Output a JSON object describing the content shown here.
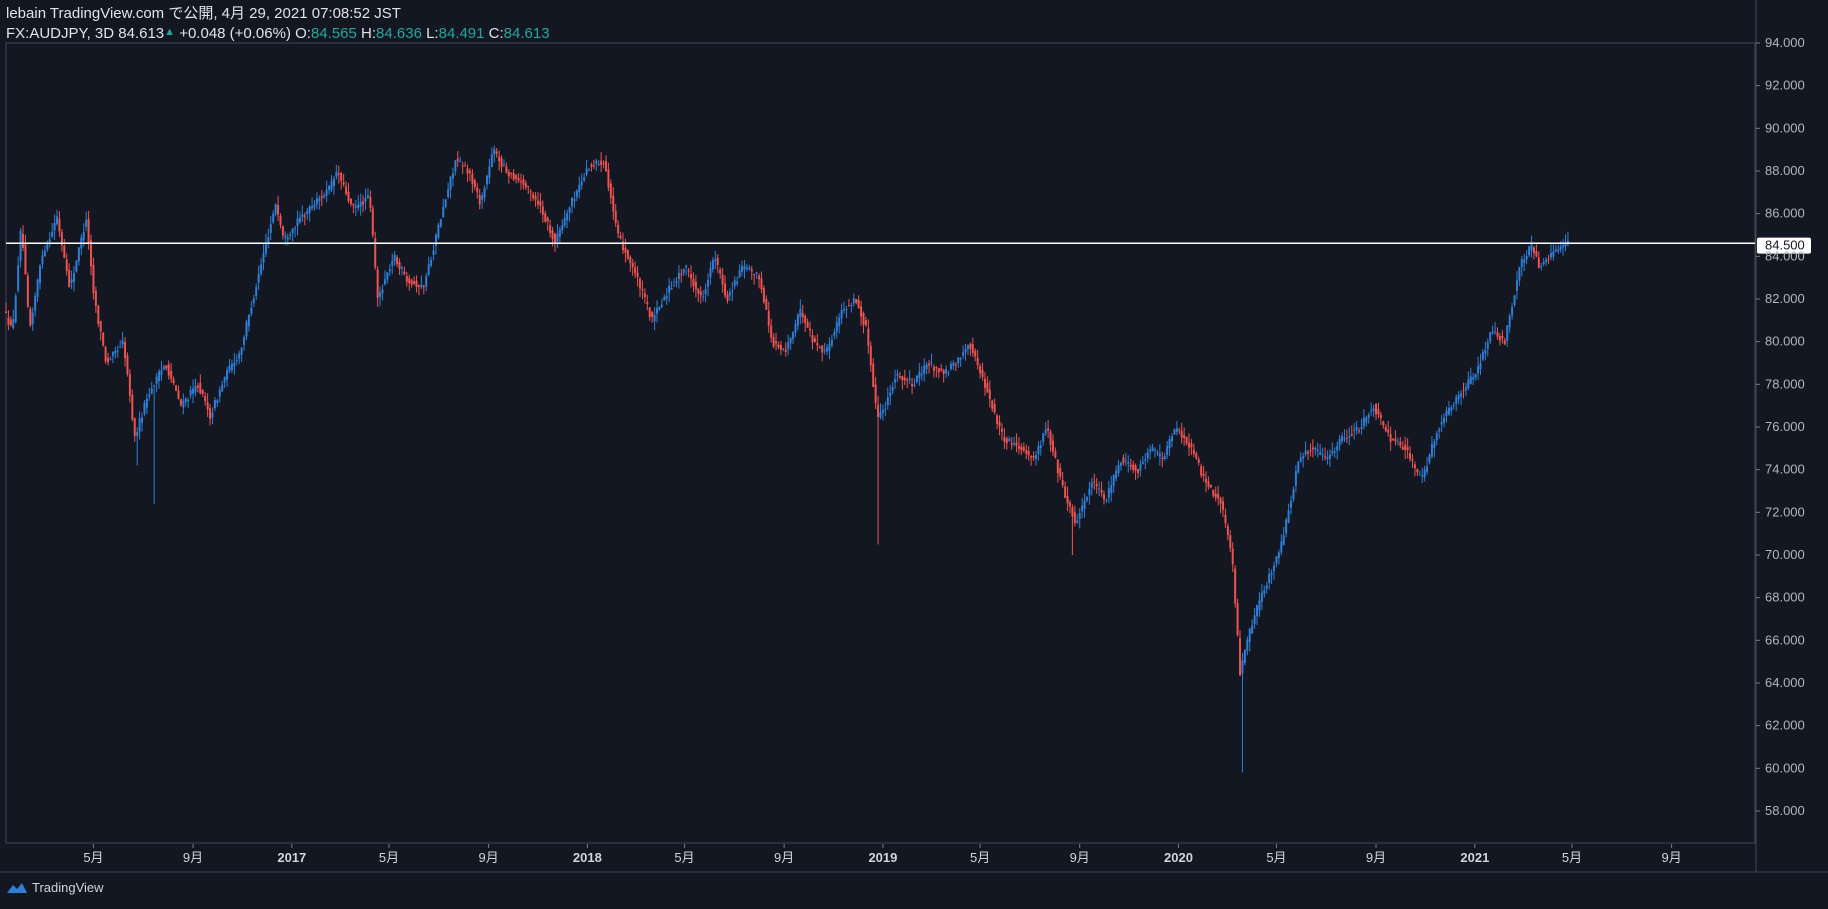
{
  "header": {
    "line1": "lebain TradingView.com で公開, 4月 29, 2021 07:08:52 JST",
    "symbol": "FX:AUDJPY, 3D 84.613",
    "change": "+0.048 (+0.06%)",
    "o_label": "O:",
    "o_value": "84.565",
    "h_label": "H:",
    "h_value": "84.636",
    "l_label": "L:",
    "l_value": "84.491",
    "c_label": "C:",
    "c_value": "84.613"
  },
  "footer": {
    "brand": "TradingView",
    "logo_icon": "tradingview-logo-icon"
  },
  "colors": {
    "background": "#131722",
    "up": "#2f7fd6",
    "down": "#ef5350",
    "hline": "#ffffff",
    "axis_text": "#b2b5be"
  },
  "chart_data": {
    "type": "candlestick",
    "symbol": "FX:AUDJPY",
    "interval": "3D",
    "ylim": [
      56.5,
      94.0
    ],
    "y_ticks": [
      58,
      60,
      62,
      64,
      66,
      68,
      70,
      72,
      74,
      76,
      78,
      80,
      82,
      84,
      86,
      88,
      90,
      92,
      94
    ],
    "y_tick_labels": [
      "58.000",
      "60.000",
      "62.000",
      "64.000",
      "66.000",
      "68.000",
      "70.000",
      "72.000",
      "74.000",
      "76.000",
      "78.000",
      "80.000",
      "82.000",
      "84.000",
      "86.000",
      "88.000",
      "90.000",
      "92.000",
      "94.000"
    ],
    "x_range": [
      "2016-01-14",
      "2021-12-13"
    ],
    "x_ticks": [
      {
        "date": "2016-05-01",
        "label": "5月",
        "year": false
      },
      {
        "date": "2016-09-01",
        "label": "9月",
        "year": false
      },
      {
        "date": "2017-01-01",
        "label": "2017",
        "year": true
      },
      {
        "date": "2017-05-01",
        "label": "5月",
        "year": false
      },
      {
        "date": "2017-09-01",
        "label": "9月",
        "year": false
      },
      {
        "date": "2018-01-01",
        "label": "2018",
        "year": true
      },
      {
        "date": "2018-05-01",
        "label": "5月",
        "year": false
      },
      {
        "date": "2018-09-01",
        "label": "9月",
        "year": false
      },
      {
        "date": "2019-01-01",
        "label": "2019",
        "year": true
      },
      {
        "date": "2019-05-01",
        "label": "5月",
        "year": false
      },
      {
        "date": "2019-09-01",
        "label": "9月",
        "year": false
      },
      {
        "date": "2020-01-01",
        "label": "2020",
        "year": true
      },
      {
        "date": "2020-05-01",
        "label": "5月",
        "year": false
      },
      {
        "date": "2020-09-01",
        "label": "9月",
        "year": false
      },
      {
        "date": "2021-01-01",
        "label": "2021",
        "year": true
      },
      {
        "date": "2021-05-01",
        "label": "5月",
        "year": false
      },
      {
        "date": "2021-09-01",
        "label": "9月",
        "year": false
      }
    ],
    "horizontal_line": {
      "value": 84.613
    },
    "last_price_label": "84.613",
    "marker_label": "84.500",
    "path_points": [
      [
        "2016-01-14",
        81.5
      ],
      [
        "2016-01-25",
        80.5
      ],
      [
        "2016-02-05",
        85.5
      ],
      [
        "2016-02-15",
        80.5
      ],
      [
        "2016-03-01",
        84.0
      ],
      [
        "2016-03-20",
        85.8
      ],
      [
        "2016-04-05",
        82.5
      ],
      [
        "2016-04-25",
        85.8
      ],
      [
        "2016-05-05",
        82.0
      ],
      [
        "2016-05-20",
        79.0
      ],
      [
        "2016-06-10",
        80.0
      ],
      [
        "2016-06-24",
        75.5
      ],
      [
        "2016-07-10",
        77.5
      ],
      [
        "2016-08-01",
        79.0
      ],
      [
        "2016-08-20",
        77.0
      ],
      [
        "2016-09-10",
        78.0
      ],
      [
        "2016-09-25",
        76.5
      ],
      [
        "2016-10-15",
        78.5
      ],
      [
        "2016-11-01",
        79.5
      ],
      [
        "2016-11-20",
        82.5
      ],
      [
        "2016-12-15",
        86.5
      ],
      [
        "2016-12-25",
        84.8
      ],
      [
        "2017-01-15",
        85.8
      ],
      [
        "2017-02-01",
        86.5
      ],
      [
        "2017-02-20",
        87.2
      ],
      [
        "2017-03-01",
        88.0
      ],
      [
        "2017-03-20",
        86.2
      ],
      [
        "2017-04-10",
        86.8
      ],
      [
        "2017-04-20",
        82.0
      ],
      [
        "2017-05-10",
        84.0
      ],
      [
        "2017-05-25",
        83.0
      ],
      [
        "2017-06-15",
        82.5
      ],
      [
        "2017-07-05",
        85.5
      ],
      [
        "2017-07-25",
        88.5
      ],
      [
        "2017-08-10",
        88.0
      ],
      [
        "2017-08-25",
        86.5
      ],
      [
        "2017-09-10",
        89.0
      ],
      [
        "2017-09-25",
        88.0
      ],
      [
        "2017-10-15",
        87.5
      ],
      [
        "2017-11-05",
        86.5
      ],
      [
        "2017-11-25",
        84.7
      ],
      [
        "2017-12-15",
        86.5
      ],
      [
        "2018-01-05",
        88.2
      ],
      [
        "2018-01-25",
        88.5
      ],
      [
        "2018-02-10",
        85.0
      ],
      [
        "2018-03-01",
        83.5
      ],
      [
        "2018-03-25",
        81.0
      ],
      [
        "2018-04-15",
        82.5
      ],
      [
        "2018-05-05",
        83.5
      ],
      [
        "2018-05-25",
        82.0
      ],
      [
        "2018-06-10",
        84.0
      ],
      [
        "2018-06-25",
        82.0
      ],
      [
        "2018-07-15",
        83.5
      ],
      [
        "2018-08-05",
        83.0
      ],
      [
        "2018-08-20",
        80.0
      ],
      [
        "2018-09-05",
        79.5
      ],
      [
        "2018-09-25",
        81.5
      ],
      [
        "2018-10-10",
        80.0
      ],
      [
        "2018-10-26",
        79.5
      ],
      [
        "2018-11-15",
        81.5
      ],
      [
        "2018-12-01",
        82.0
      ],
      [
        "2018-12-15",
        80.5
      ],
      [
        "2018-12-28",
        76.5
      ],
      [
        "2019-01-05",
        76.8
      ],
      [
        "2019-01-20",
        78.5
      ],
      [
        "2019-02-10",
        78.0
      ],
      [
        "2019-03-01",
        79.0
      ],
      [
        "2019-03-20",
        78.5
      ],
      [
        "2019-04-05",
        79.0
      ],
      [
        "2019-04-20",
        80.0
      ],
      [
        "2019-05-10",
        78.0
      ],
      [
        "2019-06-01",
        75.5
      ],
      [
        "2019-06-25",
        75.0
      ],
      [
        "2019-07-10",
        74.5
      ],
      [
        "2019-07-25",
        76.0
      ],
      [
        "2019-08-15",
        73.0
      ],
      [
        "2019-08-30",
        71.5
      ],
      [
        "2019-09-20",
        73.5
      ],
      [
        "2019-10-05",
        72.5
      ],
      [
        "2019-10-25",
        74.5
      ],
      [
        "2019-11-15",
        74.0
      ],
      [
        "2019-12-01",
        75.0
      ],
      [
        "2019-12-15",
        74.5
      ],
      [
        "2020-01-01",
        76.0
      ],
      [
        "2020-01-20",
        75.0
      ],
      [
        "2020-02-05",
        73.5
      ],
      [
        "2020-02-25",
        72.5
      ],
      [
        "2020-03-10",
        70.0
      ],
      [
        "2020-03-20",
        64.5
      ],
      [
        "2020-04-05",
        67.0
      ],
      [
        "2020-04-20",
        68.5
      ],
      [
        "2020-05-10",
        70.5
      ],
      [
        "2020-06-01",
        74.5
      ],
      [
        "2020-06-15",
        75.0
      ],
      [
        "2020-07-05",
        74.5
      ],
      [
        "2020-07-25",
        75.5
      ],
      [
        "2020-08-15",
        76.0
      ],
      [
        "2020-09-01",
        77.0
      ],
      [
        "2020-09-20",
        75.5
      ],
      [
        "2020-10-10",
        75.0
      ],
      [
        "2020-10-30",
        73.5
      ],
      [
        "2020-11-20",
        76.0
      ],
      [
        "2020-12-15",
        77.5
      ],
      [
        "2021-01-05",
        78.5
      ],
      [
        "2021-01-25",
        80.5
      ],
      [
        "2021-02-10",
        80.0
      ],
      [
        "2021-02-28",
        83.5
      ],
      [
        "2021-03-15",
        84.5
      ],
      [
        "2021-03-25",
        83.5
      ],
      [
        "2021-04-05",
        84.0
      ],
      [
        "2021-04-28",
        84.6
      ]
    ],
    "spikes": [
      {
        "date": "2016-06-24",
        "low": 74.2
      },
      {
        "date": "2016-07-15",
        "low": 72.4
      },
      {
        "date": "2018-12-28",
        "low": 70.5
      },
      {
        "date": "2019-08-25",
        "low": 70.0
      },
      {
        "date": "2020-03-20",
        "low": 59.8
      }
    ]
  }
}
